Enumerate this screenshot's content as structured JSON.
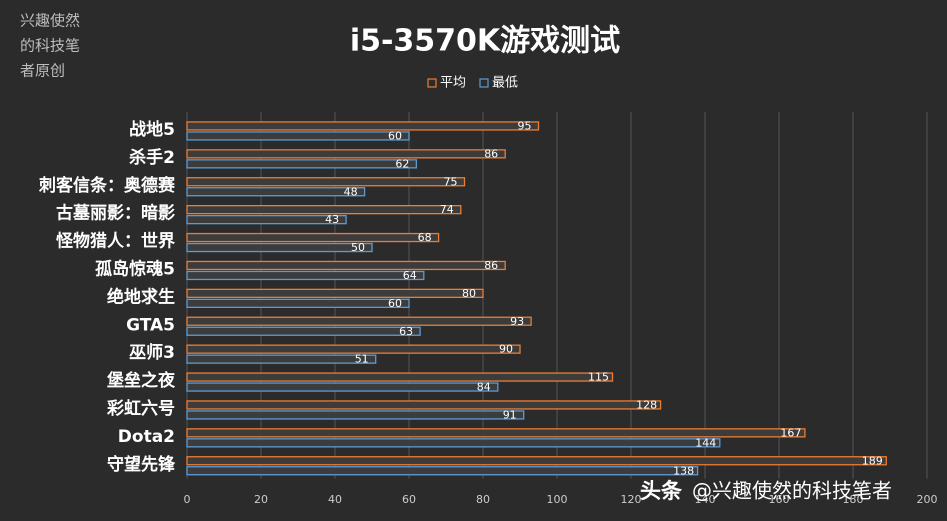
{
  "chart_data": {
    "type": "bar",
    "orientation": "horizontal",
    "title": "i5-3570K游戏测试",
    "categories": [
      "战地5",
      "杀手2",
      "刺客信条：奥德赛",
      "古墓丽影：暗影",
      "怪物猎人：世界",
      "孤岛惊魂5",
      "绝地求生",
      "GTA5",
      "巫师3",
      "堡垒之夜",
      "彩虹六号",
      "Dota2",
      "守望先锋"
    ],
    "series": [
      {
        "name": "平均",
        "color": "#ed7d31",
        "values": [
          95,
          86,
          75,
          74,
          68,
          86,
          80,
          93,
          90,
          115,
          128,
          167,
          189
        ]
      },
      {
        "name": "最低",
        "color": "#5b9bd5",
        "values": [
          60,
          62,
          48,
          43,
          50,
          64,
          60,
          63,
          51,
          84,
          91,
          144,
          138
        ]
      }
    ],
    "xlim": [
      0,
      200
    ],
    "xticks": [
      0,
      20,
      40,
      60,
      80,
      100,
      120,
      140,
      160,
      180,
      200
    ],
    "grid": true,
    "legend": "top"
  },
  "watermark": [
    "兴趣使然",
    "的科技笔",
    "者原创"
  ],
  "footer_watermark": [
    "头条",
    "@兴趣使然的科技笔者"
  ]
}
